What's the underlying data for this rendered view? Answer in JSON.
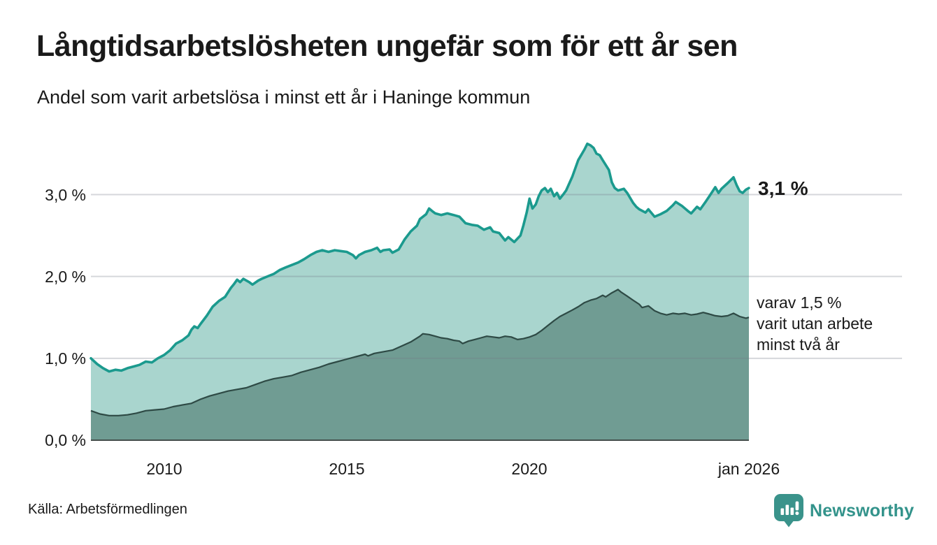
{
  "header": {
    "title": "Långtidsarbetslösheten ungefär som för ett år sen",
    "subtitle": "Andel som varit arbetslösa i minst ett år i Haninge kommun"
  },
  "chart_data": {
    "type": "area",
    "title": "Långtidsarbetslösheten ungefär som för ett år sen",
    "subtitle": "Andel som varit arbetslösa i minst ett år i Haninge kommun",
    "xlim": [
      2008.0,
      2026.0
    ],
    "ylim": [
      0,
      3.84
    ],
    "grid": "horizontal",
    "legend_position": "end-of-line labels",
    "x_ticks": [
      {
        "t": 2010,
        "label": "2010"
      },
      {
        "t": 2015,
        "label": "2015"
      },
      {
        "t": 2020,
        "label": "2020"
      },
      {
        "t": 2026,
        "label": "jan 2026"
      }
    ],
    "y_ticks": [
      {
        "v": 3.0,
        "label": "3,0 %"
      },
      {
        "v": 2.0,
        "label": "2,0 %"
      },
      {
        "v": 1.0,
        "label": "1,0 %"
      },
      {
        "v": 0.0,
        "label": "0,0 %"
      }
    ],
    "series": [
      {
        "name": "Andel arbetslösa minst ett år",
        "end_value": 3.1,
        "end_label": "3,1 %",
        "line_color": "#1b9a8e",
        "fill_color": "#a9d5ce",
        "points": [
          [
            2008.0,
            1.0
          ],
          [
            2008.17,
            0.93
          ],
          [
            2008.33,
            0.88
          ],
          [
            2008.5,
            0.84
          ],
          [
            2008.67,
            0.86
          ],
          [
            2008.83,
            0.85
          ],
          [
            2009.0,
            0.88
          ],
          [
            2009.17,
            0.9
          ],
          [
            2009.33,
            0.92
          ],
          [
            2009.5,
            0.96
          ],
          [
            2009.67,
            0.95
          ],
          [
            2009.83,
            1.0
          ],
          [
            2010.0,
            1.04
          ],
          [
            2010.17,
            1.1
          ],
          [
            2010.33,
            1.18
          ],
          [
            2010.5,
            1.22
          ],
          [
            2010.67,
            1.28
          ],
          [
            2010.75,
            1.35
          ],
          [
            2010.83,
            1.39
          ],
          [
            2010.92,
            1.37
          ],
          [
            2011.0,
            1.42
          ],
          [
            2011.17,
            1.52
          ],
          [
            2011.33,
            1.63
          ],
          [
            2011.5,
            1.7
          ],
          [
            2011.67,
            1.75
          ],
          [
            2011.83,
            1.86
          ],
          [
            2011.92,
            1.91
          ],
          [
            2012.0,
            1.96
          ],
          [
            2012.08,
            1.93
          ],
          [
            2012.17,
            1.97
          ],
          [
            2012.33,
            1.93
          ],
          [
            2012.42,
            1.9
          ],
          [
            2012.58,
            1.95
          ],
          [
            2012.67,
            1.97
          ],
          [
            2012.83,
            2.0
          ],
          [
            2013.0,
            2.03
          ],
          [
            2013.17,
            2.08
          ],
          [
            2013.33,
            2.11
          ],
          [
            2013.5,
            2.14
          ],
          [
            2013.67,
            2.17
          ],
          [
            2013.83,
            2.21
          ],
          [
            2014.0,
            2.26
          ],
          [
            2014.17,
            2.3
          ],
          [
            2014.33,
            2.32
          ],
          [
            2014.5,
            2.3
          ],
          [
            2014.67,
            2.32
          ],
          [
            2014.83,
            2.31
          ],
          [
            2015.0,
            2.3
          ],
          [
            2015.17,
            2.26
          ],
          [
            2015.25,
            2.22
          ],
          [
            2015.33,
            2.26
          ],
          [
            2015.5,
            2.3
          ],
          [
            2015.67,
            2.32
          ],
          [
            2015.83,
            2.35
          ],
          [
            2015.92,
            2.3
          ],
          [
            2016.0,
            2.32
          ],
          [
            2016.17,
            2.33
          ],
          [
            2016.25,
            2.29
          ],
          [
            2016.42,
            2.33
          ],
          [
            2016.58,
            2.45
          ],
          [
            2016.75,
            2.55
          ],
          [
            2016.92,
            2.62
          ],
          [
            2017.0,
            2.7
          ],
          [
            2017.17,
            2.76
          ],
          [
            2017.25,
            2.83
          ],
          [
            2017.33,
            2.8
          ],
          [
            2017.42,
            2.77
          ],
          [
            2017.58,
            2.75
          ],
          [
            2017.75,
            2.77
          ],
          [
            2017.92,
            2.75
          ],
          [
            2018.08,
            2.73
          ],
          [
            2018.25,
            2.65
          ],
          [
            2018.42,
            2.63
          ],
          [
            2018.58,
            2.62
          ],
          [
            2018.75,
            2.57
          ],
          [
            2018.92,
            2.6
          ],
          [
            2019.0,
            2.55
          ],
          [
            2019.17,
            2.53
          ],
          [
            2019.33,
            2.44
          ],
          [
            2019.42,
            2.48
          ],
          [
            2019.58,
            2.42
          ],
          [
            2019.75,
            2.5
          ],
          [
            2019.83,
            2.62
          ],
          [
            2019.92,
            2.78
          ],
          [
            2020.0,
            2.95
          ],
          [
            2020.08,
            2.83
          ],
          [
            2020.17,
            2.88
          ],
          [
            2020.25,
            2.98
          ],
          [
            2020.33,
            3.05
          ],
          [
            2020.42,
            3.08
          ],
          [
            2020.5,
            3.03
          ],
          [
            2020.58,
            3.07
          ],
          [
            2020.67,
            2.98
          ],
          [
            2020.75,
            3.02
          ],
          [
            2020.83,
            2.95
          ],
          [
            2020.92,
            3.0
          ],
          [
            2021.0,
            3.05
          ],
          [
            2021.17,
            3.22
          ],
          [
            2021.33,
            3.42
          ],
          [
            2021.5,
            3.55
          ],
          [
            2021.58,
            3.62
          ],
          [
            2021.67,
            3.6
          ],
          [
            2021.75,
            3.57
          ],
          [
            2021.83,
            3.5
          ],
          [
            2021.92,
            3.48
          ],
          [
            2022.0,
            3.42
          ],
          [
            2022.17,
            3.3
          ],
          [
            2022.25,
            3.15
          ],
          [
            2022.33,
            3.08
          ],
          [
            2022.42,
            3.05
          ],
          [
            2022.58,
            3.07
          ],
          [
            2022.67,
            3.02
          ],
          [
            2022.83,
            2.9
          ],
          [
            2022.92,
            2.85
          ],
          [
            2023.0,
            2.82
          ],
          [
            2023.17,
            2.78
          ],
          [
            2023.25,
            2.82
          ],
          [
            2023.42,
            2.73
          ],
          [
            2023.58,
            2.76
          ],
          [
            2023.75,
            2.8
          ],
          [
            2023.92,
            2.87
          ],
          [
            2024.0,
            2.91
          ],
          [
            2024.17,
            2.86
          ],
          [
            2024.33,
            2.8
          ],
          [
            2024.42,
            2.77
          ],
          [
            2024.58,
            2.85
          ],
          [
            2024.67,
            2.82
          ],
          [
            2024.83,
            2.92
          ],
          [
            2024.92,
            2.98
          ],
          [
            2025.08,
            3.09
          ],
          [
            2025.17,
            3.02
          ],
          [
            2025.25,
            3.07
          ],
          [
            2025.42,
            3.14
          ],
          [
            2025.58,
            3.21
          ],
          [
            2025.67,
            3.11
          ],
          [
            2025.75,
            3.04
          ],
          [
            2025.83,
            3.02
          ],
          [
            2025.92,
            3.06
          ],
          [
            2026.0,
            3.08
          ]
        ]
      },
      {
        "name": "varav utan arbete minst två år",
        "end_value": 1.5,
        "annotation_lines": [
          "varav 1,5 %",
          "varit utan arbete",
          "minst två år"
        ],
        "line_color": "#2e4a45",
        "fill_color": "#709c93",
        "points": [
          [
            2008.0,
            0.36
          ],
          [
            2008.25,
            0.32
          ],
          [
            2008.5,
            0.3
          ],
          [
            2008.75,
            0.3
          ],
          [
            2009.0,
            0.31
          ],
          [
            2009.25,
            0.33
          ],
          [
            2009.5,
            0.36
          ],
          [
            2009.75,
            0.37
          ],
          [
            2010.0,
            0.38
          ],
          [
            2010.25,
            0.41
          ],
          [
            2010.5,
            0.43
          ],
          [
            2010.75,
            0.45
          ],
          [
            2011.0,
            0.5
          ],
          [
            2011.25,
            0.54
          ],
          [
            2011.5,
            0.57
          ],
          [
            2011.75,
            0.6
          ],
          [
            2012.0,
            0.62
          ],
          [
            2012.25,
            0.64
          ],
          [
            2012.5,
            0.68
          ],
          [
            2012.75,
            0.72
          ],
          [
            2013.0,
            0.75
          ],
          [
            2013.25,
            0.77
          ],
          [
            2013.5,
            0.79
          ],
          [
            2013.75,
            0.83
          ],
          [
            2014.0,
            0.86
          ],
          [
            2014.25,
            0.89
          ],
          [
            2014.5,
            0.93
          ],
          [
            2014.75,
            0.96
          ],
          [
            2015.0,
            0.99
          ],
          [
            2015.25,
            1.02
          ],
          [
            2015.5,
            1.05
          ],
          [
            2015.58,
            1.03
          ],
          [
            2015.75,
            1.06
          ],
          [
            2016.0,
            1.08
          ],
          [
            2016.25,
            1.1
          ],
          [
            2016.5,
            1.15
          ],
          [
            2016.75,
            1.2
          ],
          [
            2017.0,
            1.27
          ],
          [
            2017.08,
            1.3
          ],
          [
            2017.25,
            1.29
          ],
          [
            2017.42,
            1.27
          ],
          [
            2017.58,
            1.25
          ],
          [
            2017.75,
            1.24
          ],
          [
            2017.92,
            1.22
          ],
          [
            2018.08,
            1.21
          ],
          [
            2018.17,
            1.18
          ],
          [
            2018.33,
            1.21
          ],
          [
            2018.5,
            1.23
          ],
          [
            2018.67,
            1.25
          ],
          [
            2018.83,
            1.27
          ],
          [
            2019.0,
            1.26
          ],
          [
            2019.17,
            1.25
          ],
          [
            2019.33,
            1.27
          ],
          [
            2019.5,
            1.26
          ],
          [
            2019.67,
            1.23
          ],
          [
            2019.83,
            1.24
          ],
          [
            2020.0,
            1.26
          ],
          [
            2020.17,
            1.29
          ],
          [
            2020.33,
            1.34
          ],
          [
            2020.5,
            1.4
          ],
          [
            2020.67,
            1.46
          ],
          [
            2020.83,
            1.51
          ],
          [
            2021.0,
            1.55
          ],
          [
            2021.17,
            1.59
          ],
          [
            2021.33,
            1.63
          ],
          [
            2021.5,
            1.68
          ],
          [
            2021.67,
            1.71
          ],
          [
            2021.83,
            1.73
          ],
          [
            2022.0,
            1.77
          ],
          [
            2022.08,
            1.75
          ],
          [
            2022.25,
            1.8
          ],
          [
            2022.42,
            1.84
          ],
          [
            2022.5,
            1.81
          ],
          [
            2022.67,
            1.76
          ],
          [
            2022.83,
            1.71
          ],
          [
            2023.0,
            1.66
          ],
          [
            2023.08,
            1.62
          ],
          [
            2023.25,
            1.64
          ],
          [
            2023.42,
            1.58
          ],
          [
            2023.58,
            1.55
          ],
          [
            2023.75,
            1.53
          ],
          [
            2023.92,
            1.55
          ],
          [
            2024.08,
            1.54
          ],
          [
            2024.25,
            1.55
          ],
          [
            2024.42,
            1.53
          ],
          [
            2024.58,
            1.54
          ],
          [
            2024.75,
            1.56
          ],
          [
            2024.92,
            1.54
          ],
          [
            2025.08,
            1.52
          ],
          [
            2025.25,
            1.51
          ],
          [
            2025.42,
            1.52
          ],
          [
            2025.58,
            1.55
          ],
          [
            2025.75,
            1.51
          ],
          [
            2025.92,
            1.49
          ],
          [
            2026.0,
            1.5
          ]
        ]
      }
    ]
  },
  "annotations": {
    "end_value_label": "3,1 %",
    "series2_note": [
      "varav 1,5 %",
      "varit utan arbete",
      "minst två år"
    ]
  },
  "footer": {
    "source": "Källa: Arbetsförmedlingen",
    "brand_name": "Newsworthy"
  },
  "colors": {
    "accent_teal": "#1b9a8e",
    "light_fill": "#a9d5ce",
    "dark_fill": "#709c93",
    "dark_line": "#2e4a45",
    "brand_teal": "#33938b",
    "text": "#1a1a1a",
    "gridline": "#d9dce1"
  }
}
